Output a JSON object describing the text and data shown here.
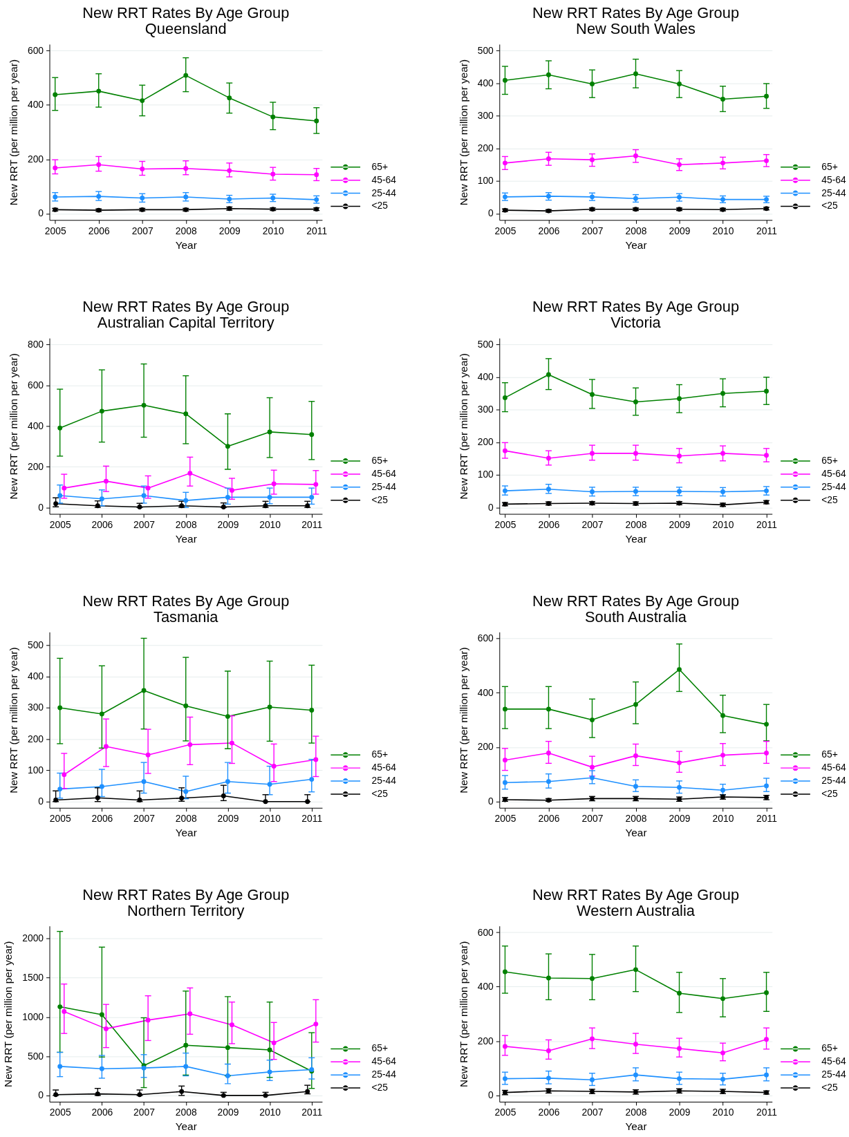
{
  "chart_data": [
    {
      "type": "line",
      "title": "New RRT Rates By Age Group",
      "subtitle": "Queensland",
      "xlabel": "Year",
      "ylabel": "New RRT (per million per year)",
      "x": [
        2005,
        2006,
        2007,
        2008,
        2009,
        2010,
        2011
      ],
      "xlim": [
        2004.87,
        2011.13
      ],
      "xticks": [
        2005,
        2006,
        2007,
        2008,
        2009,
        2010,
        2011
      ],
      "ylim": [
        -24,
        624
      ],
      "yticks": [
        0,
        200,
        400,
        600
      ],
      "grid": "y",
      "legend": "right",
      "marker": "circle",
      "line_style": "solid",
      "series": [
        {
          "name": "65+",
          "color": "#008000",
          "values": [
            438,
            451,
            416,
            509,
            426,
            356,
            341
          ],
          "errors": [
            [
              380,
              501
            ],
            [
              392,
              515
            ],
            [
              360,
              473
            ],
            [
              449,
              574
            ],
            [
              370,
              481
            ],
            [
              309,
              410
            ],
            [
              295,
              390
            ]
          ]
        },
        {
          "name": "45-64",
          "color": "#ff00ff",
          "values": [
            168,
            180,
            164,
            166,
            158,
            145,
            143
          ],
          "errors": [
            [
              146,
              198
            ],
            [
              156,
              210
            ],
            [
              141,
              192
            ],
            [
              143,
              194
            ],
            [
              135,
              186
            ],
            [
              123,
              170
            ],
            [
              121,
              166
            ]
          ]
        },
        {
          "name": "25-44",
          "color": "#1e90ff",
          "values": [
            61,
            63,
            57,
            61,
            53,
            57,
            51
          ],
          "errors": [
            [
              46,
              77
            ],
            [
              48,
              81
            ],
            [
              42,
              73
            ],
            [
              46,
              77
            ],
            [
              40,
              67
            ],
            [
              44,
              71
            ],
            [
              38,
              65
            ]
          ]
        },
        {
          "name": "<25",
          "color": "#000000",
          "values": [
            14,
            12,
            14,
            14,
            18,
            16,
            16
          ],
          "errors": [
            [
              9,
              19
            ],
            [
              7,
              17
            ],
            [
              9,
              19
            ],
            [
              9,
              19
            ],
            [
              12,
              24
            ],
            [
              11,
              21
            ],
            [
              11,
              21
            ]
          ]
        }
      ]
    },
    {
      "type": "line",
      "title": "New RRT Rates By Age Group",
      "subtitle": "New South Wales",
      "xlabel": "Year",
      "ylabel": "New RRT (per million per year)",
      "x": [
        2005,
        2006,
        2007,
        2008,
        2009,
        2010,
        2011
      ],
      "xlim": [
        2004.87,
        2011.13
      ],
      "xticks": [
        2005,
        2006,
        2007,
        2008,
        2009,
        2010,
        2011
      ],
      "ylim": [
        -20,
        520
      ],
      "yticks": [
        0,
        100,
        200,
        300,
        400,
        500
      ],
      "grid": "y",
      "legend": "right",
      "marker": "circle",
      "line_style": "solid",
      "series": [
        {
          "name": "65+",
          "color": "#008000",
          "values": [
            409,
            426,
            398,
            429,
            398,
            351,
            360
          ],
          "errors": [
            [
              366,
              452
            ],
            [
              383,
              469
            ],
            [
              356,
              441
            ],
            [
              386,
              474
            ],
            [
              356,
              439
            ],
            [
              313,
              391
            ],
            [
              323,
              399
            ]
          ]
        },
        {
          "name": "45-64",
          "color": "#ff00ff",
          "values": [
            155,
            168,
            165,
            177,
            150,
            155,
            162
          ],
          "errors": [
            [
              135,
              175
            ],
            [
              148,
              188
            ],
            [
              145,
              183
            ],
            [
              157,
              196
            ],
            [
              132,
              168
            ],
            [
              137,
              173
            ],
            [
              144,
              181
            ]
          ]
        },
        {
          "name": "25-44",
          "color": "#1e90ff",
          "values": [
            51,
            53,
            51,
            46,
            50,
            43,
            43
          ],
          "errors": [
            [
              40,
              63
            ],
            [
              41,
              64
            ],
            [
              40,
              63
            ],
            [
              35,
              58
            ],
            [
              38,
              61
            ],
            [
              33,
              54
            ],
            [
              33,
              53
            ]
          ]
        },
        {
          "name": "<25",
          "color": "#000000",
          "values": [
            10,
            8,
            13,
            13,
            13,
            12,
            15
          ],
          "errors": [
            [
              6,
              14
            ],
            [
              4,
              12
            ],
            [
              9,
              17
            ],
            [
              9,
              17
            ],
            [
              9,
              17
            ],
            [
              8,
              16
            ],
            [
              11,
              19
            ]
          ]
        }
      ]
    },
    {
      "type": "line",
      "title": "New RRT Rates By Age Group",
      "subtitle": "Australian Capital Territory",
      "xlabel": "Year",
      "ylabel": "New RRT (per million per year)",
      "x": [
        2005,
        2006,
        2007,
        2008,
        2009,
        2010,
        2011
      ],
      "xlim": [
        2004.75,
        2011.25
      ],
      "xticks": [
        2005,
        2006,
        2007,
        2008,
        2009,
        2010,
        2011
      ],
      "ylim": [
        -32,
        832
      ],
      "yticks": [
        0,
        200,
        400,
        600,
        800
      ],
      "grid": "y",
      "legend": "right",
      "marker": "circle",
      "line_style": "solid",
      "series": [
        {
          "name": "65+",
          "color": "#008000",
          "values": [
            390,
            473,
            502,
            460,
            300,
            371,
            358
          ],
          "errors": [
            [
              252,
              581
            ],
            [
              321,
              676
            ],
            [
              345,
              705
            ],
            [
              313,
              647
            ],
            [
              187,
              460
            ],
            [
              245,
              539
            ],
            [
              235,
              521
            ]
          ]
        },
        {
          "name": "45-64",
          "color": "#ff00ff",
          "x": [
            2005.1,
            2006.1,
            2007.1,
            2008.1,
            2009.1,
            2010.1,
            2011.1
          ],
          "values": [
            95,
            129,
            95,
            168,
            84,
            116,
            113
          ],
          "errors": [
            [
              45,
              163
            ],
            [
              78,
              203
            ],
            [
              45,
              155
            ],
            [
              105,
              247
            ],
            [
              40,
              143
            ],
            [
              65,
              183
            ],
            [
              65,
              181
            ]
          ]
        },
        {
          "name": "25-44",
          "color": "#1e90ff",
          "values": [
            58,
            42,
            58,
            34,
            50,
            50,
            50
          ],
          "errors": [
            [
              21,
              110
            ],
            [
              8,
              86
            ],
            [
              21,
              105
            ],
            [
              0,
              74
            ],
            [
              16,
              95
            ],
            [
              18,
              95
            ],
            [
              16,
              95
            ]
          ]
        },
        {
          "name": "<25",
          "color": "#000000",
          "x": [
            2004.9,
            2005.9,
            2006.9,
            2007.9,
            2008.9,
            2009.9,
            2010.9
          ],
          "values": [
            18,
            8,
            2,
            8,
            2,
            8,
            8
          ],
          "errors": [
            [
              3,
              47
            ],
            [
              0,
              32
            ],
            [
              0,
              20
            ],
            [
              0,
              30
            ],
            [
              0,
              22
            ],
            [
              0,
              30
            ],
            [
              0,
              30
            ]
          ]
        }
      ]
    },
    {
      "type": "line",
      "title": "New RRT Rates By Age Group",
      "subtitle": "Victoria",
      "xlabel": "Year",
      "ylabel": "New RRT (per million per year)",
      "x": [
        2005,
        2006,
        2007,
        2008,
        2009,
        2010,
        2011
      ],
      "xlim": [
        2004.87,
        2011.13
      ],
      "xticks": [
        2005,
        2006,
        2007,
        2008,
        2009,
        2010,
        2011
      ],
      "ylim": [
        -20,
        520
      ],
      "yticks": [
        0,
        100,
        200,
        300,
        400,
        500
      ],
      "grid": "y",
      "legend": "right",
      "marker": "circle",
      "line_style": "solid",
      "series": [
        {
          "name": "65+",
          "color": "#008000",
          "values": [
            337,
            408,
            347,
            324,
            334,
            350,
            357
          ],
          "errors": [
            [
              294,
              383
            ],
            [
              362,
              457
            ],
            [
              304,
              393
            ],
            [
              283,
              367
            ],
            [
              291,
              377
            ],
            [
              309,
              395
            ],
            [
              316,
              400
            ]
          ]
        },
        {
          "name": "45-64",
          "color": "#ff00ff",
          "values": [
            174,
            151,
            166,
            166,
            158,
            166,
            160
          ],
          "errors": [
            [
              151,
              199
            ],
            [
              130,
              174
            ],
            [
              145,
              191
            ],
            [
              145,
              191
            ],
            [
              137,
              181
            ],
            [
              143,
              189
            ],
            [
              140,
              181
            ]
          ]
        },
        {
          "name": "25-44",
          "color": "#1e90ff",
          "values": [
            51,
            56,
            48,
            49,
            49,
            48,
            51
          ],
          "errors": [
            [
              38,
              66
            ],
            [
              43,
              71
            ],
            [
              35,
              62
            ],
            [
              36,
              62
            ],
            [
              36,
              62
            ],
            [
              35,
              61
            ],
            [
              38,
              64
            ]
          ]
        },
        {
          "name": "<25",
          "color": "#000000",
          "values": [
            10,
            12,
            13,
            12,
            13,
            8,
            16
          ],
          "errors": [
            [
              5,
              15
            ],
            [
              7,
              17
            ],
            [
              8,
              18
            ],
            [
              7,
              17
            ],
            [
              8,
              18
            ],
            [
              3,
              13
            ],
            [
              11,
              21
            ]
          ]
        }
      ]
    },
    {
      "type": "line",
      "title": "New RRT Rates By Age Group",
      "subtitle": "Tasmania",
      "xlabel": "Year",
      "ylabel": "New RRT (per million per year)",
      "x": [
        2005,
        2006,
        2007,
        2008,
        2009,
        2010,
        2011
      ],
      "xlim": [
        2004.75,
        2011.25
      ],
      "xticks": [
        2005,
        2006,
        2007,
        2008,
        2009,
        2010,
        2011
      ],
      "ylim": [
        -20,
        542
      ],
      "yticks": [
        0,
        100,
        200,
        300,
        400,
        500
      ],
      "grid": "y",
      "legend": "right",
      "marker": "circle",
      "line_style": "solid",
      "series": [
        {
          "name": "65+",
          "color": "#008000",
          "values": [
            300,
            280,
            355,
            306,
            272,
            302,
            292
          ],
          "errors": [
            [
              185,
              458
            ],
            [
              171,
              434
            ],
            [
              232,
              522
            ],
            [
              194,
              461
            ],
            [
              169,
              417
            ],
            [
              193,
              449
            ],
            [
              187,
              436
            ]
          ]
        },
        {
          "name": "45-64",
          "color": "#ff00ff",
          "x": [
            2005.1,
            2006.1,
            2007.1,
            2008.1,
            2009.1,
            2010.1,
            2011.1
          ],
          "values": [
            86,
            176,
            149,
            182,
            187,
            113,
            134
          ],
          "errors": [
            [
              42,
              154
            ],
            [
              112,
              264
            ],
            [
              90,
              231
            ],
            [
              118,
              270
            ],
            [
              122,
              274
            ],
            [
              64,
              184
            ],
            [
              80,
              209
            ]
          ]
        },
        {
          "name": "25-44",
          "color": "#1e90ff",
          "values": [
            40,
            48,
            64,
            32,
            64,
            55,
            71
          ],
          "errors": [
            [
              11,
              91
            ],
            [
              16,
              103
            ],
            [
              27,
              125
            ],
            [
              9,
              81
            ],
            [
              27,
              125
            ],
            [
              22,
              113
            ],
            [
              31,
              135
            ]
          ]
        },
        {
          "name": "<25",
          "color": "#000000",
          "x": [
            2004.9,
            2005.9,
            2006.9,
            2007.9,
            2008.9,
            2009.9,
            2010.9
          ],
          "values": [
            5,
            12,
            5,
            11,
            18,
            0,
            0
          ],
          "errors": [
            [
              0,
              34
            ],
            [
              0,
              44
            ],
            [
              0,
              34
            ],
            [
              1,
              44
            ],
            [
              3,
              52
            ],
            [
              0,
              22
            ],
            [
              0,
              22
            ]
          ]
        }
      ]
    },
    {
      "type": "line",
      "title": "New RRT Rates By Age Group",
      "subtitle": "South Australia",
      "xlabel": "Year",
      "ylabel": "New RRT (per million per year)",
      "x": [
        2005,
        2006,
        2007,
        2008,
        2009,
        2010,
        2011
      ],
      "xlim": [
        2004.87,
        2011.13
      ],
      "xticks": [
        2005,
        2006,
        2007,
        2008,
        2009,
        2010,
        2011
      ],
      "ylim": [
        -24,
        624
      ],
      "yticks": [
        0,
        200,
        400,
        600
      ],
      "grid": "y",
      "legend": "right",
      "marker": "circle",
      "line_style": "solid",
      "series": [
        {
          "name": "65+",
          "color": "#008000",
          "values": [
            340,
            340,
            300,
            357,
            486,
            316,
            284
          ],
          "errors": [
            [
              268,
              423
            ],
            [
              268,
              423
            ],
            [
              235,
              377
            ],
            [
              286,
              440
            ],
            [
              405,
              580
            ],
            [
              253,
              391
            ],
            [
              223,
              357
            ]
          ]
        },
        {
          "name": "45-64",
          "color": "#ff00ff",
          "values": [
            152,
            178,
            126,
            168,
            142,
            170,
            178
          ],
          "errors": [
            [
              114,
              195
            ],
            [
              140,
              221
            ],
            [
              93,
              166
            ],
            [
              132,
              211
            ],
            [
              107,
              184
            ],
            [
              132,
              213
            ],
            [
              140,
              221
            ]
          ]
        },
        {
          "name": "25-44",
          "color": "#1e90ff",
          "values": [
            69,
            73,
            87,
            55,
            51,
            41,
            57
          ],
          "errors": [
            [
              45,
              95
            ],
            [
              49,
              101
            ],
            [
              65,
              113
            ],
            [
              36,
              79
            ],
            [
              30,
              75
            ],
            [
              24,
              63
            ],
            [
              36,
              85
            ]
          ]
        },
        {
          "name": "<25",
          "color": "#000000",
          "values": [
            6,
            4,
            10,
            10,
            8,
            16,
            14
          ],
          "errors": [
            [
              0,
              14
            ],
            [
              0,
              10
            ],
            [
              2,
              18
            ],
            [
              2,
              18
            ],
            [
              0,
              16
            ],
            [
              8,
              24
            ],
            [
              6,
              22
            ]
          ]
        }
      ]
    },
    {
      "type": "line",
      "title": "New RRT Rates By Age Group",
      "subtitle": "Northern Territory",
      "xlabel": "Year",
      "ylabel": "New RRT (per million per year)",
      "x": [
        2005,
        2006,
        2007,
        2008,
        2009,
        2010,
        2011
      ],
      "xlim": [
        2004.75,
        2011.25
      ],
      "xticks": [
        2005,
        2006,
        2007,
        2008,
        2009,
        2010,
        2011
      ],
      "ylim": [
        -80,
        2160
      ],
      "yticks": [
        0,
        500,
        1000,
        1500,
        2000
      ],
      "grid": "y",
      "legend": "right",
      "marker": "circle",
      "line_style": "solid",
      "series": [
        {
          "name": "65+",
          "color": "#008000",
          "values": [
            1130,
            1030,
            380,
            640,
            610,
            580,
            310
          ],
          "errors": [
            [
              550,
              2090
            ],
            [
              490,
              1890
            ],
            [
              100,
              990
            ],
            [
              260,
              1330
            ],
            [
              250,
              1260
            ],
            [
              230,
              1190
            ],
            [
              90,
              800
            ]
          ]
        },
        {
          "name": "45-64",
          "color": "#ff00ff",
          "x": [
            2005.1,
            2006.1,
            2007.1,
            2008.1,
            2009.1,
            2010.1,
            2011.1
          ],
          "values": [
            1070,
            850,
            960,
            1040,
            900,
            670,
            910
          ],
          "errors": [
            [
              790,
              1420
            ],
            [
              610,
              1160
            ],
            [
              700,
              1270
            ],
            [
              780,
              1370
            ],
            [
              660,
              1190
            ],
            [
              460,
              930
            ],
            [
              680,
              1220
            ]
          ]
        },
        {
          "name": "25-44",
          "color": "#1e90ff",
          "values": [
            370,
            340,
            350,
            370,
            250,
            300,
            330
          ],
          "errors": [
            [
              240,
              550
            ],
            [
              220,
              510
            ],
            [
              230,
              520
            ],
            [
              250,
              540
            ],
            [
              150,
              400
            ],
            [
              190,
              450
            ],
            [
              210,
              480
            ]
          ]
        },
        {
          "name": "<25",
          "color": "#000000",
          "x": [
            2004.9,
            2005.9,
            2006.9,
            2007.9,
            2008.9,
            2009.9,
            2010.9
          ],
          "values": [
            10,
            20,
            10,
            50,
            0,
            0,
            50
          ],
          "errors": [
            [
              0,
              70
            ],
            [
              0,
              90
            ],
            [
              0,
              70
            ],
            [
              0,
              120
            ],
            [
              0,
              40
            ],
            [
              0,
              40
            ],
            [
              20,
              130
            ]
          ]
        }
      ]
    },
    {
      "type": "line",
      "title": "New RRT Rates By Age Group",
      "subtitle": "Western Australia",
      "xlabel": "Year",
      "ylabel": "New RRT (per million per year)",
      "x": [
        2005,
        2006,
        2007,
        2008,
        2009,
        2010,
        2011
      ],
      "xlim": [
        2004.87,
        2011.13
      ],
      "xticks": [
        2005,
        2006,
        2007,
        2008,
        2009,
        2010,
        2011
      ],
      "ylim": [
        -24,
        624
      ],
      "yticks": [
        0,
        200,
        400,
        600
      ],
      "grid": "y",
      "legend": "right",
      "marker": "circle",
      "line_style": "solid",
      "series": [
        {
          "name": "65+",
          "color": "#008000",
          "values": [
            455,
            432,
            430,
            463,
            376,
            356,
            378
          ],
          "errors": [
            [
              376,
              550
            ],
            [
              352,
              521
            ],
            [
              352,
              519
            ],
            [
              382,
              550
            ],
            [
              305,
              453
            ],
            [
              289,
              430
            ],
            [
              309,
              453
            ]
          ]
        },
        {
          "name": "45-64",
          "color": "#ff00ff",
          "values": [
            180,
            164,
            208,
            188,
            172,
            156,
            206
          ],
          "errors": [
            [
              147,
              220
            ],
            [
              133,
              204
            ],
            [
              172,
              248
            ],
            [
              154,
              228
            ],
            [
              141,
              210
            ],
            [
              127,
              192
            ],
            [
              170,
              248
            ]
          ]
        },
        {
          "name": "25-44",
          "color": "#1e90ff",
          "values": [
            61,
            63,
            57,
            75,
            61,
            59,
            75
          ],
          "errors": [
            [
              40,
              85
            ],
            [
              42,
              89
            ],
            [
              36,
              81
            ],
            [
              53,
              101
            ],
            [
              40,
              85
            ],
            [
              38,
              81
            ],
            [
              53,
              101
            ]
          ]
        },
        {
          "name": "<25",
          "color": "#000000",
          "values": [
            10,
            16,
            14,
            12,
            16,
            14,
            10
          ],
          "errors": [
            [
              2,
              18
            ],
            [
              8,
              24
            ],
            [
              6,
              22
            ],
            [
              4,
              20
            ],
            [
              8,
              24
            ],
            [
              6,
              22
            ],
            [
              4,
              16
            ]
          ]
        }
      ]
    }
  ]
}
